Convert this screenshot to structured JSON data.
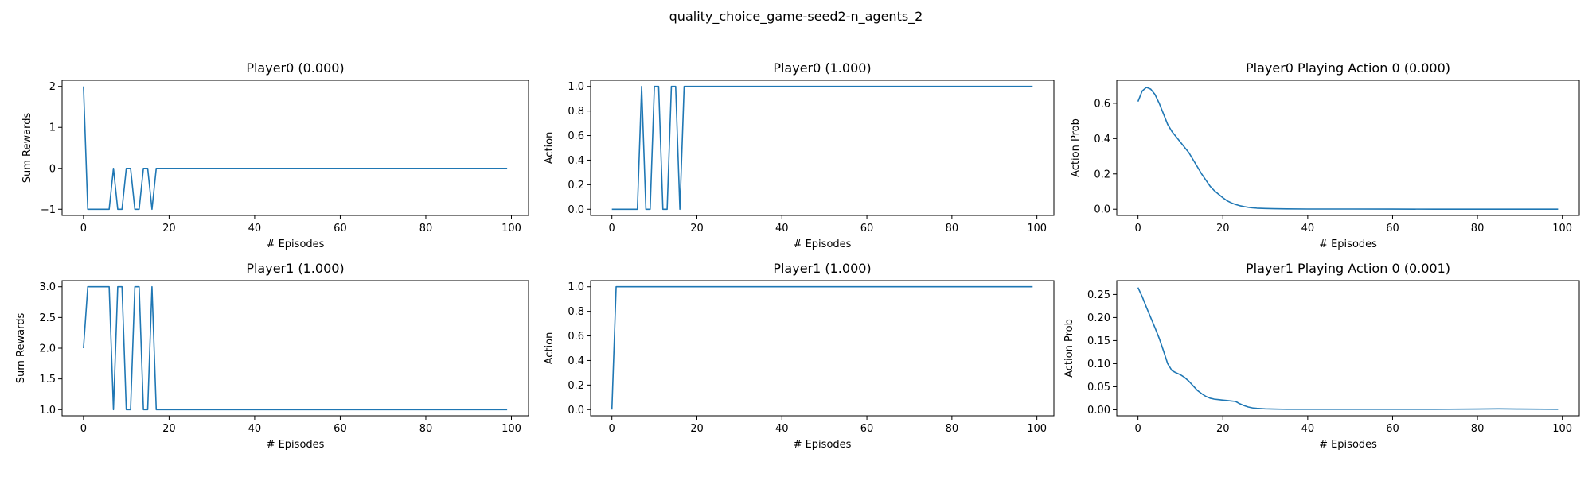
{
  "figure_title": "quality_choice_game-seed2-n_agents_2",
  "chart_data": [
    {
      "type": "line",
      "title": "Player0 (0.000)",
      "xlabel": "# Episodes",
      "ylabel": "Sum Rewards",
      "xlim": [
        -5,
        104
      ],
      "ylim": [
        -1.15,
        2.15
      ],
      "xticks": [
        0,
        20,
        40,
        60,
        80,
        100
      ],
      "yticks": [
        -1,
        0,
        1,
        2
      ],
      "ytick_labels": [
        "−1",
        "0",
        "1",
        "2"
      ],
      "x": [
        0,
        1,
        2,
        3,
        4,
        5,
        6,
        7,
        8,
        9,
        10,
        11,
        12,
        13,
        14,
        15,
        16,
        17,
        18,
        19,
        20,
        25,
        30,
        35,
        40,
        45,
        50,
        55,
        60,
        65,
        70,
        75,
        80,
        85,
        90,
        95,
        99
      ],
      "values": [
        2,
        -1,
        -1,
        -1,
        -1,
        -1,
        -1,
        0,
        -1,
        -1,
        0,
        0,
        -1,
        -1,
        0,
        0,
        -1,
        0,
        0,
        0,
        0,
        0,
        0,
        0,
        0,
        0,
        0,
        0,
        0,
        0,
        0,
        0,
        0,
        0,
        0,
        0,
        0
      ],
      "color": "#1f77b4"
    },
    {
      "type": "line",
      "title": "Player0 (1.000)",
      "xlabel": "# Episodes",
      "ylabel": "Action",
      "xlim": [
        -5,
        104
      ],
      "ylim": [
        -0.05,
        1.05
      ],
      "xticks": [
        0,
        20,
        40,
        60,
        80,
        100
      ],
      "yticks": [
        0.0,
        0.2,
        0.4,
        0.6,
        0.8,
        1.0
      ],
      "ytick_labels": [
        "0.0",
        "0.2",
        "0.4",
        "0.6",
        "0.8",
        "1.0"
      ],
      "x": [
        0,
        1,
        2,
        3,
        4,
        5,
        6,
        7,
        8,
        9,
        10,
        11,
        12,
        13,
        14,
        15,
        16,
        17,
        18,
        19,
        20,
        25,
        30,
        35,
        40,
        45,
        50,
        55,
        60,
        65,
        70,
        75,
        80,
        85,
        90,
        95,
        99
      ],
      "values": [
        0,
        0,
        0,
        0,
        0,
        0,
        0,
        1,
        0,
        0,
        1,
        1,
        0,
        0,
        1,
        1,
        0,
        1,
        1,
        1,
        1,
        1,
        1,
        1,
        1,
        1,
        1,
        1,
        1,
        1,
        1,
        1,
        1,
        1,
        1,
        1,
        1
      ],
      "color": "#1f77b4"
    },
    {
      "type": "line",
      "title": "Player0 Playing Action 0 (0.000)",
      "xlabel": "# Episodes",
      "ylabel": "Action Prob",
      "xlim": [
        -5,
        104
      ],
      "ylim": [
        -0.035,
        0.73
      ],
      "xticks": [
        0,
        20,
        40,
        60,
        80,
        100
      ],
      "yticks": [
        0.0,
        0.2,
        0.4,
        0.6
      ],
      "ytick_labels": [
        "0.0",
        "0.2",
        "0.4",
        "0.6"
      ],
      "x": [
        0,
        1,
        2,
        3,
        4,
        5,
        6,
        7,
        8,
        9,
        10,
        11,
        12,
        13,
        14,
        15,
        16,
        17,
        18,
        19,
        20,
        21,
        22,
        23,
        24,
        25,
        26,
        27,
        28,
        30,
        32,
        35,
        40,
        50,
        60,
        70,
        80,
        90,
        99
      ],
      "values": [
        0.61,
        0.67,
        0.69,
        0.68,
        0.65,
        0.6,
        0.54,
        0.48,
        0.44,
        0.41,
        0.38,
        0.35,
        0.32,
        0.28,
        0.24,
        0.2,
        0.165,
        0.13,
        0.105,
        0.085,
        0.065,
        0.048,
        0.036,
        0.027,
        0.02,
        0.015,
        0.011,
        0.008,
        0.006,
        0.004,
        0.003,
        0.002,
        0.001,
        0.001,
        0.0005,
        0.0003,
        0.0002,
        0.0001,
        0.0
      ],
      "color": "#1f77b4"
    },
    {
      "type": "line",
      "title": "Player1 (1.000)",
      "xlabel": "# Episodes",
      "ylabel": "Sum Rewards",
      "xlim": [
        -5,
        104
      ],
      "ylim": [
        0.9,
        3.1
      ],
      "xticks": [
        0,
        20,
        40,
        60,
        80,
        100
      ],
      "yticks": [
        1.0,
        1.5,
        2.0,
        2.5,
        3.0
      ],
      "ytick_labels": [
        "1.0",
        "1.5",
        "2.0",
        "2.5",
        "3.0"
      ],
      "x": [
        0,
        1,
        2,
        3,
        4,
        5,
        6,
        7,
        8,
        9,
        10,
        11,
        12,
        13,
        14,
        15,
        16,
        17,
        18,
        19,
        20,
        25,
        30,
        35,
        40,
        45,
        50,
        55,
        60,
        65,
        70,
        75,
        80,
        85,
        90,
        95,
        99
      ],
      "values": [
        2,
        3,
        3,
        3,
        3,
        3,
        3,
        1,
        3,
        3,
        1,
        1,
        3,
        3,
        1,
        1,
        3,
        1,
        1,
        1,
        1,
        1,
        1,
        1,
        1,
        1,
        1,
        1,
        1,
        1,
        1,
        1,
        1,
        1,
        1,
        1,
        1
      ],
      "color": "#1f77b4"
    },
    {
      "type": "line",
      "title": "Player1 (1.000)",
      "xlabel": "# Episodes",
      "ylabel": "Action",
      "xlim": [
        -5,
        104
      ],
      "ylim": [
        -0.05,
        1.05
      ],
      "xticks": [
        0,
        20,
        40,
        60,
        80,
        100
      ],
      "yticks": [
        0.0,
        0.2,
        0.4,
        0.6,
        0.8,
        1.0
      ],
      "ytick_labels": [
        "0.0",
        "0.2",
        "0.4",
        "0.6",
        "0.8",
        "1.0"
      ],
      "x": [
        0,
        1,
        2,
        5,
        10,
        20,
        30,
        40,
        50,
        60,
        70,
        80,
        90,
        99
      ],
      "values": [
        0,
        1,
        1,
        1,
        1,
        1,
        1,
        1,
        1,
        1,
        1,
        1,
        1,
        1
      ],
      "color": "#1f77b4"
    },
    {
      "type": "line",
      "title": "Player1 Playing Action 0 (0.001)",
      "xlabel": "# Episodes",
      "ylabel": "Action Prob",
      "xlim": [
        -5,
        104
      ],
      "ylim": [
        -0.013,
        0.28
      ],
      "xticks": [
        0,
        20,
        40,
        60,
        80,
        100
      ],
      "yticks": [
        0.0,
        0.05,
        0.1,
        0.15,
        0.2,
        0.25
      ],
      "ytick_labels": [
        "0.00",
        "0.05",
        "0.10",
        "0.15",
        "0.20",
        "0.25"
      ],
      "x": [
        0,
        1,
        2,
        3,
        4,
        5,
        6,
        7,
        8,
        9,
        10,
        11,
        12,
        13,
        14,
        15,
        16,
        17,
        18,
        19,
        20,
        21,
        22,
        23,
        24,
        25,
        26,
        27,
        28,
        30,
        32,
        35,
        40,
        50,
        60,
        70,
        80,
        85,
        90,
        99
      ],
      "values": [
        0.265,
        0.245,
        0.222,
        0.2,
        0.178,
        0.155,
        0.128,
        0.1,
        0.085,
        0.08,
        0.076,
        0.07,
        0.062,
        0.052,
        0.042,
        0.035,
        0.029,
        0.025,
        0.023,
        0.022,
        0.021,
        0.02,
        0.019,
        0.018,
        0.013,
        0.009,
        0.006,
        0.004,
        0.003,
        0.002,
        0.0015,
        0.001,
        0.001,
        0.001,
        0.001,
        0.001,
        0.0015,
        0.002,
        0.0015,
        0.001
      ],
      "color": "#1f77b4"
    }
  ]
}
